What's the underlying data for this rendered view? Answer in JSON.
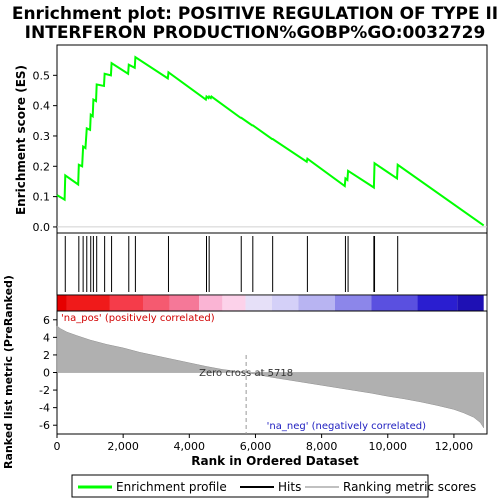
{
  "chart_data": {
    "type": "line",
    "title_lines": [
      "Enrichment plot: POSITIVE REGULATION OF TYPE II",
      "INTERFERON PRODUCTION%GOBP%GO:0032729"
    ],
    "es_panel": {
      "ylabel": "Enrichment score (ES)",
      "ylim": [
        -0.02,
        0.6
      ],
      "yticks": [
        0.0,
        0.1,
        0.2,
        0.3,
        0.4,
        0.5
      ],
      "ytick_labels": [
        "0.0",
        "0.1",
        "0.2",
        "0.3",
        "0.4",
        "0.5"
      ],
      "series": [
        {
          "name": "Enrichment profile",
          "color": "#00ff00",
          "x": [
            0,
            230,
            250,
            640,
            660,
            760,
            790,
            860,
            900,
            1000,
            1020,
            1080,
            1100,
            1180,
            1200,
            1420,
            1440,
            1630,
            1650,
            2150,
            2170,
            2350,
            2370,
            3350,
            3370,
            4500,
            4520,
            4580,
            4600,
            4650,
            4670,
            5550,
            5570,
            5900,
            5920,
            6500,
            6520,
            7550,
            7570,
            8700,
            8720,
            8780,
            8800,
            9580,
            9600,
            10280,
            10300,
            12900
          ],
          "y": [
            0.105,
            0.09,
            0.17,
            0.14,
            0.205,
            0.2,
            0.265,
            0.26,
            0.325,
            0.32,
            0.37,
            0.365,
            0.42,
            0.415,
            0.47,
            0.465,
            0.505,
            0.5,
            0.54,
            0.505,
            0.535,
            0.525,
            0.56,
            0.49,
            0.51,
            0.42,
            0.43,
            0.425,
            0.43,
            0.425,
            0.43,
            0.36,
            0.36,
            0.335,
            0.335,
            0.29,
            0.29,
            0.215,
            0.225,
            0.135,
            0.16,
            0.155,
            0.185,
            0.13,
            0.21,
            0.16,
            0.205,
            0.005
          ]
        }
      ]
    },
    "hits": [
      250,
      660,
      790,
      900,
      1020,
      1100,
      1200,
      1440,
      1650,
      2170,
      2370,
      3370,
      4520,
      4600,
      5570,
      5920,
      6520,
      7570,
      8720,
      8800,
      9580,
      9600,
      10300
    ],
    "rank_panel": {
      "ylabel": "Ranked list metric (PreRanked)",
      "xlabel": "Rank in Ordered Dataset",
      "ylim": [
        -7,
        7
      ],
      "yticks": [
        -6,
        -4,
        -2,
        0,
        2,
        4,
        6
      ],
      "ytick_labels": [
        "-6",
        "-4",
        "-2",
        "0",
        "2",
        "4",
        "6"
      ],
      "x": [
        0,
        100,
        300,
        600,
        1000,
        1500,
        2000,
        2500,
        3000,
        3500,
        4000,
        4500,
        5000,
        5718,
        6500,
        7000,
        7500,
        8000,
        8500,
        9000,
        9500,
        10000,
        10500,
        11000,
        11500,
        12000,
        12300,
        12600,
        12800,
        12900
      ],
      "y": [
        5.3,
        5.0,
        4.6,
        4.2,
        3.7,
        3.2,
        2.8,
        2.3,
        1.9,
        1.5,
        1.1,
        0.7,
        0.35,
        0.0,
        -0.55,
        -0.85,
        -1.15,
        -1.45,
        -1.75,
        -2.05,
        -2.35,
        -2.7,
        -3.0,
        -3.35,
        -3.75,
        -4.2,
        -4.6,
        -5.1,
        -5.7,
        -6.3
      ],
      "zero_cross_label": "Zero cross at 5718",
      "zero_cross_x": 5718,
      "pos_label": "'na_pos' (positively correlated)",
      "neg_label": "'na_neg' (negatively correlated)"
    },
    "xlim": [
      0,
      13000
    ],
    "xticks": [
      0,
      2000,
      4000,
      6000,
      8000,
      10000,
      12000
    ],
    "xtick_labels": [
      "0",
      "2,000",
      "4,000",
      "6,000",
      "8,000",
      "10,000",
      "12,000"
    ],
    "heatmap_segments": [
      {
        "from": 0,
        "to": 300,
        "color": "#e60000"
      },
      {
        "from": 300,
        "to": 1600,
        "color": "#f01a1a"
      },
      {
        "from": 1600,
        "to": 2600,
        "color": "#f53c4a"
      },
      {
        "from": 2600,
        "to": 3400,
        "color": "#f55a70"
      },
      {
        "from": 3400,
        "to": 4300,
        "color": "#f57898"
      },
      {
        "from": 4300,
        "to": 5000,
        "color": "#fab4d4"
      },
      {
        "from": 5000,
        "to": 5700,
        "color": "#fcd2ea"
      },
      {
        "from": 5700,
        "to": 6500,
        "color": "#e6e0f8"
      },
      {
        "from": 6500,
        "to": 7300,
        "color": "#d4d0f8"
      },
      {
        "from": 7300,
        "to": 8400,
        "color": "#b8b4f2"
      },
      {
        "from": 8400,
        "to": 9500,
        "color": "#8c86ea"
      },
      {
        "from": 9500,
        "to": 10900,
        "color": "#5a50e0"
      },
      {
        "from": 10900,
        "to": 12100,
        "color": "#2a1ed0"
      },
      {
        "from": 12100,
        "to": 12900,
        "color": "#1e10b4"
      }
    ],
    "legend": [
      {
        "label": "Enrichment profile",
        "color": "#00ff00"
      },
      {
        "label": "Hits",
        "color": "#000000"
      },
      {
        "label": "Ranking metric scores",
        "color": "#c0c0c0"
      }
    ]
  }
}
